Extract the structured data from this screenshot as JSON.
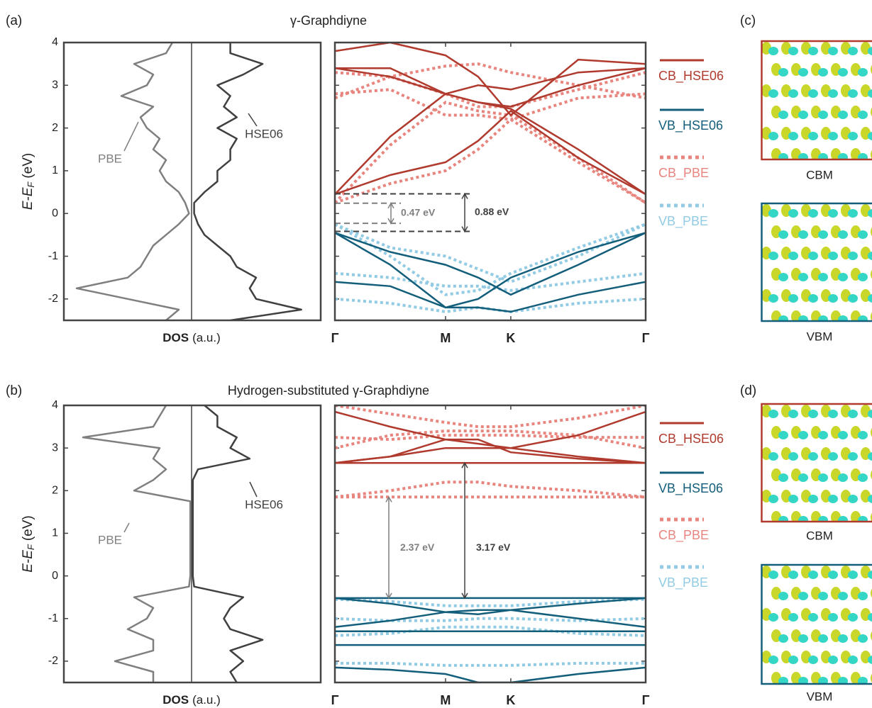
{
  "chart_data": [
    {
      "type": "dos",
      "panel": "(a)",
      "title": "γ-Graphdiyne",
      "ylabel": {
        "main": "E-E",
        "sub": "F",
        "unit": "(eV)"
      },
      "xlabel": {
        "bold": "DOS",
        "rest": "(a.u.)"
      },
      "ylim": [
        -2.5,
        4
      ],
      "yticks": [
        -2,
        -1,
        0,
        1,
        2,
        3,
        4
      ],
      "xlim": [
        0,
        1
      ],
      "energies": [
        -2.5,
        -2.25,
        -2,
        -1.75,
        -1.5,
        -1.25,
        -1,
        -0.75,
        -0.5,
        -0.25,
        0,
        0.25,
        0.5,
        0.75,
        1,
        1.25,
        1.5,
        1.75,
        2,
        2.25,
        2.5,
        2.75,
        3,
        3.25,
        3.5,
        3.75,
        4
      ],
      "series": [
        {
          "name": "PBE",
          "color": "#7f7f7f",
          "side": "left",
          "values": [
            0.2,
            0.1,
            0.5,
            0.9,
            0.5,
            0.4,
            0.35,
            0.3,
            0.2,
            0.1,
            0.02,
            0.05,
            0.1,
            0.2,
            0.25,
            0.2,
            0.3,
            0.25,
            0.35,
            0.4,
            0.3,
            0.55,
            0.35,
            0.3,
            0.45,
            0.2,
            0.15
          ]
        },
        {
          "name": "HSE06",
          "color": "#404040",
          "side": "right",
          "values": [
            0.3,
            0.85,
            0.5,
            0.45,
            0.5,
            0.35,
            0.3,
            0.2,
            0.1,
            0.05,
            0.02,
            0.02,
            0.1,
            0.2,
            0.2,
            0.3,
            0.3,
            0.35,
            0.2,
            0.35,
            0.25,
            0.3,
            0.2,
            0.4,
            0.55,
            0.3,
            0.3
          ]
        }
      ]
    },
    {
      "type": "bands",
      "xlim": [
        0,
        1
      ],
      "ylim": [
        -2.5,
        4
      ],
      "yticks": [
        -2,
        -1,
        0,
        1,
        2,
        3,
        4
      ],
      "xticks": [
        {
          "value": 0,
          "label": "Γ"
        },
        {
          "value": 0.356,
          "label": "M"
        },
        {
          "value": 0.566,
          "label": "K"
        },
        {
          "value": 1,
          "label": "Γ"
        }
      ],
      "x": [
        0,
        0.178,
        0.356,
        0.461,
        0.566,
        0.783,
        1
      ],
      "gap_boxes": true,
      "series": [
        {
          "name": "CB_HSE06",
          "color": "#b03a2e",
          "style": "solid",
          "lines": [
            [
              0.45,
              0.9,
              1.2,
              1.7,
              2.4,
              1.3,
              0.45
            ],
            [
              0.45,
              1.8,
              2.8,
              2.6,
              2.45,
              1.5,
              0.45
            ],
            [
              3.4,
              3.2,
              2.8,
              2.6,
              2.5,
              3.0,
              3.4
            ],
            [
              3.4,
              3.4,
              2.8,
              3.0,
              2.9,
              3.3,
              3.4
            ],
            [
              3.8,
              4.0,
              3.7,
              3.2,
              2.3,
              3.6,
              3.5
            ]
          ]
        },
        {
          "name": "VB_HSE06",
          "color": "#135e7a",
          "style": "solid",
          "lines": [
            [
              -0.45,
              -0.9,
              -1.2,
              -1.5,
              -1.9,
              -1.2,
              -0.45
            ],
            [
              -0.45,
              -1.2,
              -2.2,
              -2.0,
              -1.5,
              -0.9,
              -0.45
            ],
            [
              -1.6,
              -1.7,
              -2.2,
              -2.2,
              -2.3,
              -1.9,
              -1.6
            ]
          ]
        },
        {
          "name": "CB_PBE",
          "color": "#e8857e",
          "style": "dot",
          "lines": [
            [
              0.25,
              0.7,
              1.0,
              1.5,
              2.2,
              1.2,
              0.25
            ],
            [
              0.25,
              1.6,
              2.6,
              2.4,
              2.3,
              1.3,
              0.25
            ],
            [
              3.3,
              3.2,
              2.8,
              2.5,
              2.5,
              2.9,
              3.3
            ],
            [
              2.8,
              2.9,
              2.3,
              2.3,
              2.2,
              2.7,
              2.8
            ],
            [
              2.7,
              3.2,
              3.45,
              3.5,
              3.3,
              3.0,
              2.7
            ]
          ]
        },
        {
          "name": "VB_PBE",
          "color": "#92cbe3",
          "style": "dot",
          "lines": [
            [
              -0.25,
              -0.8,
              -1.0,
              -1.3,
              -1.6,
              -1.0,
              -0.25
            ],
            [
              -0.25,
              -1.0,
              -1.9,
              -1.8,
              -1.4,
              -0.8,
              -0.25
            ],
            [
              -1.4,
              -1.5,
              -1.7,
              -1.7,
              -1.8,
              -1.6,
              -1.4
            ],
            [
              -2.0,
              -2.1,
              -2.3,
              -2.2,
              -2.3,
              -2.1,
              -2.0
            ]
          ]
        }
      ],
      "gaps": [
        {
          "label": "0.47 eV",
          "from": -0.23,
          "to": 0.24,
          "color": "#7f7f7f"
        },
        {
          "label": "0.88 eV",
          "from": -0.42,
          "to": 0.46,
          "color": "#404040"
        }
      ]
    },
    {
      "type": "dos",
      "panel": "(b)",
      "title": "Hydrogen-substituted γ-Graphdiyne",
      "ylabel": {
        "main": "E-E",
        "sub": "F",
        "unit": "(eV)"
      },
      "xlabel": {
        "bold": "DOS",
        "rest": "(a.u.)"
      },
      "ylim": [
        -2.5,
        4
      ],
      "yticks": [
        -2,
        -1,
        0,
        1,
        2,
        3,
        4
      ],
      "xlim": [
        0,
        1
      ],
      "energies": [
        -2.5,
        -2.25,
        -2,
        -1.75,
        -1.5,
        -1.25,
        -1,
        -0.75,
        -0.5,
        -0.25,
        0,
        0.25,
        0.5,
        0.75,
        1,
        1.25,
        1.5,
        1.75,
        2,
        2.25,
        2.5,
        2.75,
        3,
        3.25,
        3.5,
        3.75,
        4
      ],
      "series": [
        {
          "name": "PBE",
          "color": "#7f7f7f",
          "side": "left",
          "values": [
            0.3,
            0.3,
            0.6,
            0.3,
            0.3,
            0.5,
            0.35,
            0.3,
            0.45,
            0.02,
            0.01,
            0.01,
            0.01,
            0.01,
            0.01,
            0.01,
            0.01,
            0.01,
            0.45,
            0.3,
            0.2,
            0.3,
            0.25,
            0.85,
            0.3,
            0.25,
            0.2
          ]
        },
        {
          "name": "HSE06",
          "color": "#404040",
          "side": "right",
          "values": [
            0.35,
            0.3,
            0.4,
            0.3,
            0.55,
            0.3,
            0.25,
            0.3,
            0.4,
            0.02,
            0.01,
            0.01,
            0.01,
            0.01,
            0.01,
            0.01,
            0.01,
            0.01,
            0.01,
            0.01,
            0.05,
            0.45,
            0.3,
            0.35,
            0.2,
            0.2,
            0.1
          ]
        }
      ]
    },
    {
      "type": "bands",
      "xlim": [
        0,
        1
      ],
      "ylim": [
        -2.5,
        4
      ],
      "yticks": [
        -2,
        -1,
        0,
        1,
        2,
        3,
        4
      ],
      "xticks": [
        {
          "value": 0,
          "label": "Γ"
        },
        {
          "value": 0.356,
          "label": "M"
        },
        {
          "value": 0.566,
          "label": "K"
        },
        {
          "value": 1,
          "label": "Γ"
        }
      ],
      "x": [
        0,
        0.178,
        0.356,
        0.461,
        0.566,
        0.783,
        1
      ],
      "gap_boxes": false,
      "series": [
        {
          "name": "CB_HSE06",
          "color": "#b03a2e",
          "style": "solid",
          "lines": [
            [
              2.65,
              2.65,
              2.65,
              2.65,
              2.65,
              2.65,
              2.65
            ],
            [
              3.85,
              3.5,
              3.2,
              3.1,
              3.0,
              3.3,
              3.85
            ],
            [
              2.65,
              2.8,
              3.0,
              3.0,
              3.0,
              2.8,
              2.65
            ],
            [
              2.65,
              2.8,
              3.2,
              3.2,
              2.9,
              2.75,
              2.65
            ]
          ]
        },
        {
          "name": "VB_HSE06",
          "color": "#135e7a",
          "style": "solid",
          "lines": [
            [
              -0.52,
              -0.52,
              -0.52,
              -0.52,
              -0.52,
              -0.52,
              -0.52
            ],
            [
              -0.52,
              -0.65,
              -0.85,
              -0.9,
              -0.8,
              -0.65,
              -0.52
            ],
            [
              -1.2,
              -1.05,
              -0.85,
              -0.8,
              -0.8,
              -1.0,
              -1.2
            ],
            [
              -1.3,
              -1.3,
              -1.3,
              -1.3,
              -1.3,
              -1.3,
              -1.3
            ],
            [
              -1.62,
              -1.62,
              -1.62,
              -1.62,
              -1.62,
              -1.62,
              -1.62
            ],
            [
              -2.15,
              -2.2,
              -2.3,
              -2.5,
              -2.5,
              -2.3,
              -2.15
            ]
          ]
        },
        {
          "name": "CB_PBE",
          "color": "#e8857e",
          "style": "dot",
          "lines": [
            [
              1.85,
              1.85,
              1.85,
              1.85,
              1.85,
              1.85,
              1.85
            ],
            [
              1.85,
              2.0,
              2.2,
              2.2,
              2.1,
              2.0,
              1.85
            ],
            [
              3.25,
              3.2,
              3.3,
              3.3,
              3.3,
              3.25,
              3.25
            ],
            [
              3.0,
              3.3,
              3.4,
              3.4,
              3.4,
              3.3,
              3.0
            ],
            [
              4.0,
              3.8,
              3.6,
              3.5,
              3.5,
              3.7,
              4.0
            ]
          ]
        },
        {
          "name": "VB_PBE",
          "color": "#92cbe3",
          "style": "dot",
          "lines": [
            [
              -0.55,
              -0.6,
              -0.7,
              -0.7,
              -0.7,
              -0.6,
              -0.55
            ],
            [
              -1.0,
              -1.05,
              -1.05,
              -1.0,
              -1.0,
              -1.05,
              -1.0
            ],
            [
              -1.4,
              -1.35,
              -1.2,
              -1.2,
              -1.2,
              -1.35,
              -1.4
            ],
            [
              -2.05,
              -2.05,
              -2.1,
              -2.1,
              -2.1,
              -2.05,
              -2.05
            ]
          ]
        }
      ],
      "gaps": [
        {
          "label": "2.37 eV",
          "from": -0.52,
          "to": 1.85,
          "color": "#7f7f7f"
        },
        {
          "label": "3.17 eV",
          "from": -0.52,
          "to": 2.65,
          "color": "#404040"
        }
      ]
    }
  ],
  "figure": {
    "panels": [
      {
        "letter": "(c)",
        "top": "CBM",
        "bottom": "VBM"
      },
      {
        "letter": "(d)",
        "top": "CBM",
        "bottom": "VBM"
      }
    ]
  }
}
